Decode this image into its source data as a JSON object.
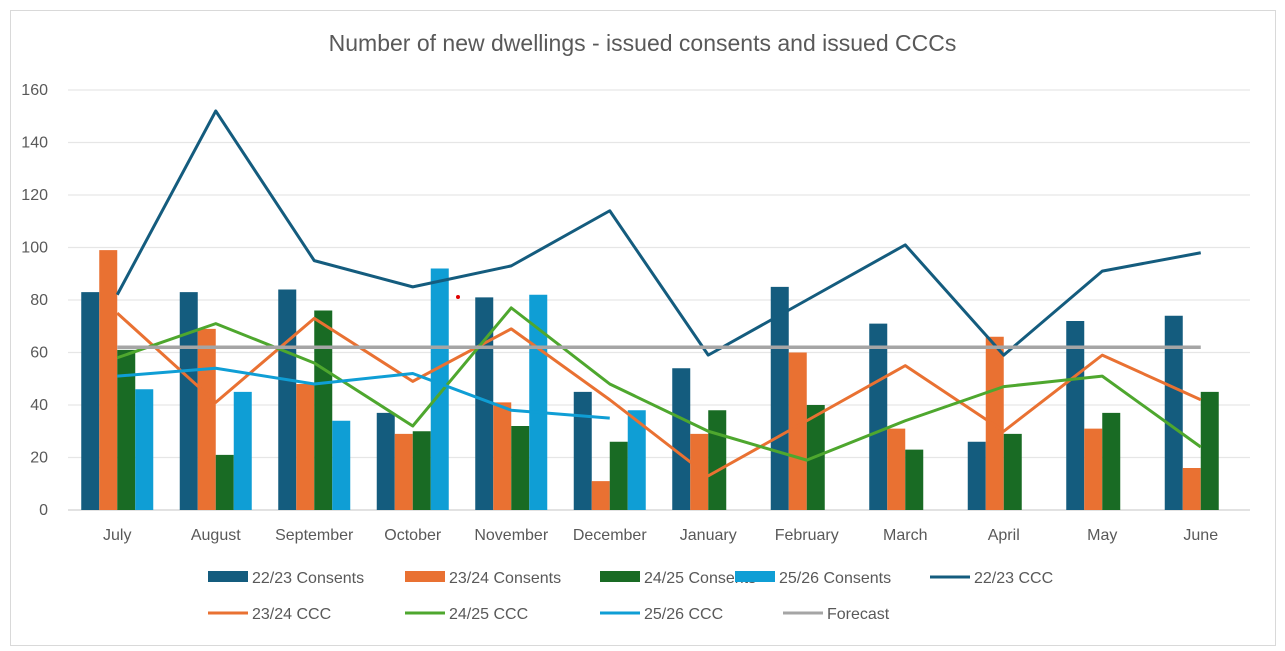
{
  "chart_data": {
    "type": "bar",
    "title": "Number of new dwellings - issued consents and issued CCCs",
    "categories": [
      "July",
      "August",
      "September",
      "October",
      "November",
      "December",
      "January",
      "February",
      "March",
      "April",
      "May",
      "June"
    ],
    "ylim": [
      0,
      160
    ],
    "yticks": [
      0,
      20,
      40,
      60,
      80,
      100,
      120,
      140,
      160
    ],
    "grid": true,
    "legend": "bottom",
    "bar_series": [
      {
        "name": "22/23 Consents",
        "color": "#145c7e",
        "values": [
          83,
          83,
          84,
          37,
          81,
          45,
          54,
          85,
          71,
          26,
          72,
          74
        ]
      },
      {
        "name": "23/24 Consents",
        "color": "#e97132",
        "values": [
          99,
          69,
          48,
          29,
          41,
          11,
          29,
          60,
          31,
          66,
          31,
          16
        ]
      },
      {
        "name": "24/25 Consents",
        "color": "#196b24",
        "values": [
          61,
          21,
          76,
          30,
          32,
          26,
          38,
          40,
          23,
          29,
          37,
          45
        ]
      },
      {
        "name": "25/26 Consents",
        "color": "#0f9ed5",
        "values": [
          46,
          45,
          34,
          92,
          82,
          38,
          null,
          null,
          null,
          null,
          null,
          null
        ]
      }
    ],
    "line_series": [
      {
        "name": "22/23 CCC",
        "color": "#145c7e",
        "values": [
          82,
          152,
          95,
          85,
          93,
          114,
          59,
          80,
          101,
          59,
          91,
          98
        ]
      },
      {
        "name": "23/24 CCC",
        "color": "#e97132",
        "values": [
          75,
          41,
          73,
          49,
          69,
          42,
          13,
          34,
          55,
          30,
          59,
          42
        ]
      },
      {
        "name": "24/25 CCC",
        "color": "#4ea72e",
        "values": [
          58,
          71,
          56,
          32,
          77,
          48,
          30,
          19,
          34,
          47,
          51,
          24
        ]
      },
      {
        "name": "25/26 CCC",
        "color": "#0f9ed5",
        "values": [
          51,
          54,
          48,
          52,
          38,
          35,
          null,
          null,
          null,
          null,
          null,
          null
        ]
      },
      {
        "name": "Forecast",
        "color": "#a5a5a5",
        "values": [
          62,
          62,
          62,
          62,
          62,
          62,
          62,
          62,
          62,
          62,
          62,
          62
        ]
      }
    ]
  }
}
